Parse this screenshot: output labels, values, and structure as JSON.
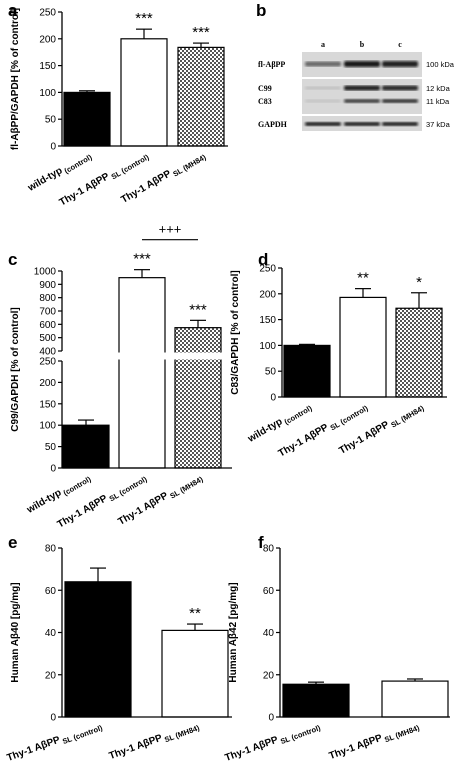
{
  "chart_data": [
    {
      "type": "bar",
      "panel": "a",
      "ylabel": "fl-AβPP/GAPDH [% of control]",
      "categories": [
        "wild-typ",
        "Thy-1 AβPP",
        "Thy-1 AβPP"
      ],
      "category_subscripts": [
        "(control)",
        "SL (control)",
        "SL (MH84)"
      ],
      "values": [
        100,
        200,
        184
      ],
      "errors": [
        3,
        18,
        8
      ],
      "annotations": [
        null,
        "***",
        "***"
      ],
      "colors": [
        "#000000",
        "#ffffff",
        "#9a9a9a"
      ],
      "hatch": [
        false,
        false,
        true
      ],
      "ylim": [
        0,
        250
      ],
      "yticks": [
        0,
        50,
        100,
        150,
        200,
        250
      ],
      "grid": false
    },
    {
      "type": "bar",
      "panel": "c",
      "ylabel": "C99/GAPDH [% of control]",
      "categories": [
        "wild-typ",
        "Thy-1 AβPP",
        "Thy-1 AβPP"
      ],
      "category_subscripts": [
        "(control)",
        "SL (control)",
        "SL (MH84)"
      ],
      "values": [
        100,
        950,
        575
      ],
      "errors": [
        12,
        60,
        55
      ],
      "annotations": [
        null,
        "***",
        "***"
      ],
      "bracket": {
        "label": "+++",
        "between": [
          1,
          2
        ]
      },
      "colors": [
        "#000000",
        "#ffffff",
        "#9a9a9a"
      ],
      "hatch": [
        false,
        false,
        true
      ],
      "ylim": [
        0,
        1000
      ],
      "ybreak": [
        250,
        400
      ],
      "yticks": [
        0,
        50,
        100,
        150,
        200,
        250,
        400,
        500,
        600,
        700,
        800,
        900,
        1000
      ],
      "grid": false
    },
    {
      "type": "bar",
      "panel": "d",
      "ylabel": "C83/GAPDH [% of control]",
      "categories": [
        "wild-typ",
        "Thy-1 AβPP",
        "Thy-1 AβPP"
      ],
      "category_subscripts": [
        "(control)",
        "SL (control)",
        "SL (MH84)"
      ],
      "values": [
        100,
        193,
        172
      ],
      "errors": [
        2,
        17,
        30
      ],
      "annotations": [
        null,
        "**",
        "*"
      ],
      "colors": [
        "#000000",
        "#ffffff",
        "#9a9a9a"
      ],
      "hatch": [
        false,
        false,
        true
      ],
      "ylim": [
        0,
        250
      ],
      "yticks": [
        0,
        50,
        100,
        150,
        200,
        250
      ],
      "grid": false
    },
    {
      "type": "bar",
      "panel": "e",
      "ylabel": "Human Aβ40 [pg/mg]",
      "categories": [
        "Thy-1 AβPP",
        "Thy-1 AβPP"
      ],
      "category_subscripts": [
        "SL (control)",
        "SL (MH84)"
      ],
      "values": [
        64,
        41
      ],
      "errors": [
        6.5,
        3
      ],
      "annotations": [
        null,
        "**"
      ],
      "colors": [
        "#000000",
        "#ffffff"
      ],
      "hatch": [
        false,
        false
      ],
      "ylim": [
        0,
        80
      ],
      "yticks": [
        0,
        20,
        40,
        60,
        80
      ],
      "grid": false
    },
    {
      "type": "bar",
      "panel": "f",
      "ylabel": "Human Aβ42 [pg/mg]",
      "categories": [
        "Thy-1 AβPP",
        "Thy-1 AβPP"
      ],
      "category_subscripts": [
        "SL (control)",
        "SL (MH84)"
      ],
      "values": [
        15.5,
        17
      ],
      "errors": [
        1,
        1
      ],
      "annotations": [
        null,
        null
      ],
      "colors": [
        "#000000",
        "#ffffff"
      ],
      "hatch": [
        false,
        false
      ],
      "ylim": [
        0,
        80
      ],
      "yticks": [
        0,
        20,
        40,
        60,
        80
      ],
      "grid": false
    }
  ],
  "blot": {
    "panel": "b",
    "lanes": [
      "a",
      "b",
      "c"
    ],
    "rows": [
      {
        "labels": [
          "fl-AβPP"
        ],
        "markers": [
          "100 kDa"
        ]
      },
      {
        "labels": [
          "C99",
          "C83"
        ],
        "markers": [
          "12 kDa",
          "11 kDa"
        ]
      },
      {
        "labels": [
          "GAPDH"
        ],
        "markers": [
          "37 kDa"
        ]
      }
    ]
  }
}
